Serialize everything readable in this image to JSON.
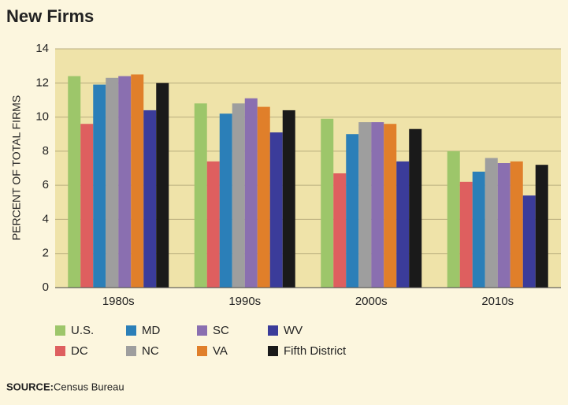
{
  "chart_data": {
    "type": "bar",
    "title": "New Firms",
    "y_label": "PERCENT OF TOTAL FIRMS",
    "categories": [
      "1980s",
      "1990s",
      "2000s",
      "2010s"
    ],
    "series": [
      {
        "name": "U.S.",
        "color": "#9dc66a",
        "values": [
          12.4,
          10.8,
          9.9,
          8.0
        ]
      },
      {
        "name": "DC",
        "color": "#de5f5f",
        "values": [
          9.6,
          7.4,
          6.7,
          6.2
        ]
      },
      {
        "name": "MD",
        "color": "#2b7fb8",
        "values": [
          11.9,
          10.2,
          9.0,
          6.8
        ]
      },
      {
        "name": "NC",
        "color": "#9e9e9e",
        "values": [
          12.3,
          10.8,
          9.7,
          7.6
        ]
      },
      {
        "name": "SC",
        "color": "#8a6fb0",
        "values": [
          12.4,
          11.1,
          9.7,
          7.3
        ]
      },
      {
        "name": "VA",
        "color": "#e07f2a",
        "values": [
          12.5,
          10.6,
          9.6,
          7.4
        ]
      },
      {
        "name": "WV",
        "color": "#3b3c9a",
        "values": [
          10.4,
          9.1,
          7.4,
          5.4
        ]
      },
      {
        "name": "Fifth District",
        "color": "#1a1a1a",
        "values": [
          12.0,
          10.4,
          9.3,
          7.2
        ]
      }
    ],
    "ylim": [
      0,
      14
    ],
    "yticks": [
      0,
      2,
      4,
      6,
      8,
      10,
      12,
      14
    ],
    "grid": true,
    "source_label": "SOURCE:",
    "source": "Census Bureau"
  }
}
